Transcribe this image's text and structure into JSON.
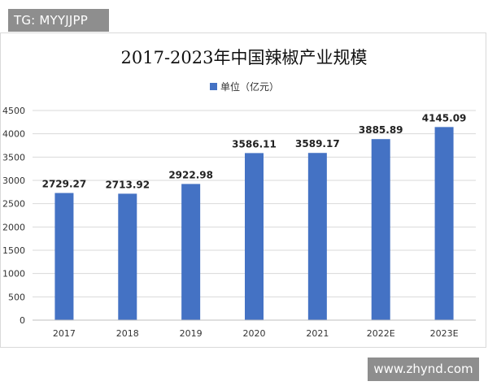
{
  "watermark_top_left": "TG: MYYJJPP",
  "watermark_bottom_right": "www.zhynd.com",
  "chart_data": {
    "type": "bar",
    "title": "2017-2023年中国辣椒产业规模",
    "legend": "单位（亿元）",
    "legend_position": "top-center",
    "categories": [
      "2017",
      "2018",
      "2019",
      "2020",
      "2021",
      "2022E",
      "2023E"
    ],
    "series": [
      {
        "name": "单位（亿元）",
        "values": [
          2729.27,
          2713.92,
          2922.98,
          3586.11,
          3589.17,
          3885.89,
          4145.09
        ]
      }
    ],
    "data_labels": [
      "2729.27",
      "2713.92",
      "2922.98",
      "3586.11",
      "3589.17",
      "3885.89",
      "4145.09"
    ],
    "yticks": [
      "0",
      "500",
      "1000",
      "1500",
      "2000",
      "2500",
      "3000",
      "3500",
      "4000",
      "4500"
    ],
    "ylim": [
      0,
      4500
    ],
    "grid": true,
    "bar_color": "#4472c4",
    "grid_color": "#d9d9d9"
  }
}
